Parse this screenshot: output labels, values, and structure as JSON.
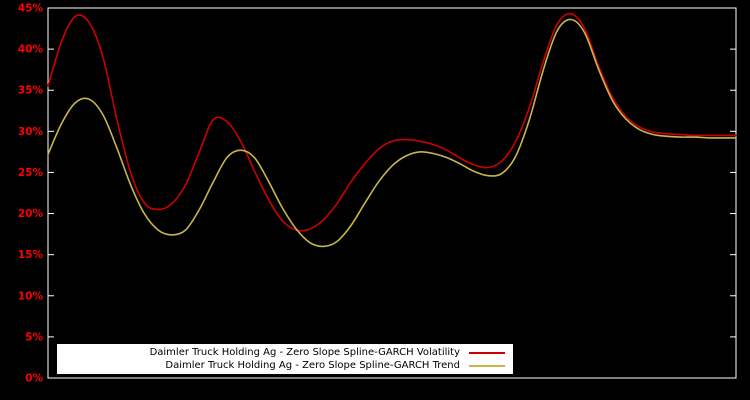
{
  "chart_data": {
    "type": "line",
    "title": "",
    "xlabel": "",
    "ylabel": "",
    "xlim": [
      0,
      100
    ],
    "ylim": [
      0,
      45
    ],
    "y_ticks": [
      0,
      5,
      10,
      15,
      20,
      25,
      30,
      35,
      40,
      45
    ],
    "y_tick_suffix": "%",
    "grid": false,
    "legend_position": "bottom-inside",
    "background_color": "#000000",
    "axis_color": "#ffffff",
    "tick_label_color": "#ff0000",
    "legend_background": "#ffffff",
    "x": [
      0,
      2,
      4,
      6,
      8,
      10,
      12,
      14,
      16,
      18,
      20,
      22,
      24,
      26,
      28,
      30,
      32,
      34,
      36,
      38,
      40,
      42,
      44,
      46,
      48,
      50,
      52,
      54,
      56,
      58,
      60,
      62,
      64,
      66,
      68,
      70,
      72,
      74,
      76,
      78,
      80,
      82,
      84,
      86,
      88,
      90,
      92,
      94,
      96,
      98,
      100
    ],
    "series": [
      {
        "name": "Daimler Truck Holding Ag - Zero Slope Spline-GARCH Volatility",
        "color": "#cc0000",
        "values": [
          35.5,
          41.0,
          44.0,
          43.2,
          39.0,
          31.5,
          25.0,
          21.3,
          20.5,
          21.2,
          23.5,
          27.5,
          31.4,
          31.2,
          28.8,
          25.2,
          21.8,
          19.2,
          18.0,
          18.1,
          19.2,
          21.2,
          23.8,
          26.0,
          27.8,
          28.8,
          29.0,
          28.8,
          28.4,
          27.7,
          26.7,
          25.9,
          25.6,
          26.4,
          28.8,
          33.0,
          38.5,
          43.0,
          44.3,
          42.5,
          38.0,
          34.2,
          31.8,
          30.5,
          29.9,
          29.7,
          29.6,
          29.5,
          29.5,
          29.5,
          29.5
        ]
      },
      {
        "name": "Daimler Truck Holding Ag - Zero Slope Spline-GARCH Trend",
        "color": "#c6b64b",
        "values": [
          27.2,
          31.0,
          33.5,
          33.9,
          32.0,
          28.0,
          23.5,
          20.0,
          18.0,
          17.4,
          18.0,
          20.5,
          23.8,
          26.8,
          27.7,
          26.8,
          24.0,
          20.8,
          18.2,
          16.5,
          16.0,
          16.6,
          18.5,
          21.2,
          23.8,
          25.8,
          27.0,
          27.5,
          27.3,
          26.8,
          26.0,
          25.1,
          24.6,
          24.9,
          27.0,
          31.5,
          37.5,
          42.2,
          43.6,
          42.0,
          37.6,
          33.8,
          31.5,
          30.2,
          29.6,
          29.4,
          29.3,
          29.3,
          29.2,
          29.2,
          29.2
        ]
      }
    ]
  }
}
